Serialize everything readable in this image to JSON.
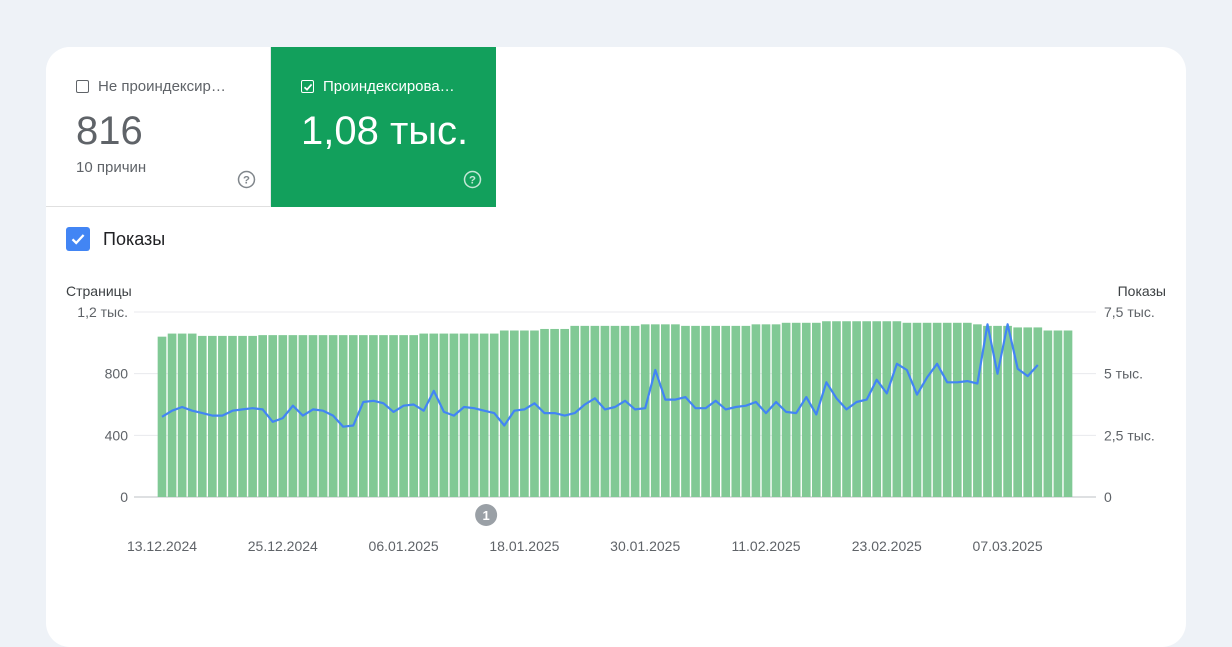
{
  "tabs": [
    {
      "label": "Не проиндексир…",
      "value": "816",
      "subtitle": "10 причин",
      "checked": false
    },
    {
      "label": "Проиндексирова…",
      "value": "1,08 тыс.",
      "checked": true,
      "color": "#12a05c"
    }
  ],
  "metric_toggle": {
    "label": "Показы",
    "checked": true,
    "color": "#4285f4"
  },
  "chart_data": {
    "type": "bar",
    "left_axis_title": "Страницы",
    "right_axis_title": "Показы",
    "left_ticks": [
      "0",
      "400",
      "800",
      "1,2 тыс."
    ],
    "right_ticks": [
      "0",
      "2,5 тыс.",
      "5 тыс.",
      "7,5 тыс."
    ],
    "x_tick_labels": [
      "13.12.2024",
      "25.12.2024",
      "06.01.2025",
      "18.01.2025",
      "30.01.2025",
      "11.02.2025",
      "23.02.2025",
      "07.03.2025"
    ],
    "annotation": "1",
    "ylim_left": [
      0,
      1200
    ],
    "ylim_right": [
      0,
      7500
    ],
    "start_date": "13.12.2024",
    "bar_color": "#81c995",
    "line_color": "#4285f4",
    "series": [
      {
        "name": "Страницы",
        "values": [
          1040,
          1060,
          1060,
          1060,
          1045,
          1045,
          1045,
          1045,
          1045,
          1045,
          1050,
          1050,
          1050,
          1050,
          1050,
          1050,
          1050,
          1050,
          1050,
          1050,
          1050,
          1050,
          1050,
          1050,
          1050,
          1050,
          1060,
          1060,
          1060,
          1060,
          1060,
          1060,
          1060,
          1060,
          1080,
          1080,
          1080,
          1080,
          1090,
          1090,
          1090,
          1110,
          1110,
          1110,
          1110,
          1110,
          1110,
          1110,
          1120,
          1120,
          1120,
          1120,
          1110,
          1110,
          1110,
          1110,
          1110,
          1110,
          1110,
          1120,
          1120,
          1120,
          1130,
          1130,
          1130,
          1130,
          1140,
          1140,
          1140,
          1140,
          1140,
          1140,
          1140,
          1140,
          1130,
          1130,
          1130,
          1130,
          1130,
          1130,
          1130,
          1120,
          1110,
          1110,
          1110,
          1100,
          1100,
          1100,
          1080,
          1080,
          1080
        ]
      },
      {
        "name": "Показы",
        "values": [
          3250,
          3500,
          3650,
          3500,
          3400,
          3300,
          3300,
          3500,
          3550,
          3600,
          3550,
          3050,
          3200,
          3700,
          3300,
          3550,
          3500,
          3300,
          2850,
          2900,
          3850,
          3900,
          3800,
          3450,
          3700,
          3750,
          3500,
          4300,
          3450,
          3300,
          3650,
          3600,
          3500,
          3400,
          2900,
          3500,
          3550,
          3800,
          3400,
          3400,
          3300,
          3400,
          3750,
          4000,
          3550,
          3650,
          3900,
          3550,
          3600,
          5150,
          3950,
          3950,
          4050,
          3600,
          3600,
          3900,
          3550,
          3650,
          3700,
          3850,
          3400,
          3850,
          3450,
          3400,
          4050,
          3350,
          4650,
          4000,
          3550,
          3850,
          3950,
          4750,
          4200,
          5400,
          5150,
          4150,
          4850,
          5400,
          4650,
          4650,
          4700,
          4600,
          7000,
          5000,
          7000,
          5200,
          4900,
          5350
        ]
      }
    ]
  }
}
